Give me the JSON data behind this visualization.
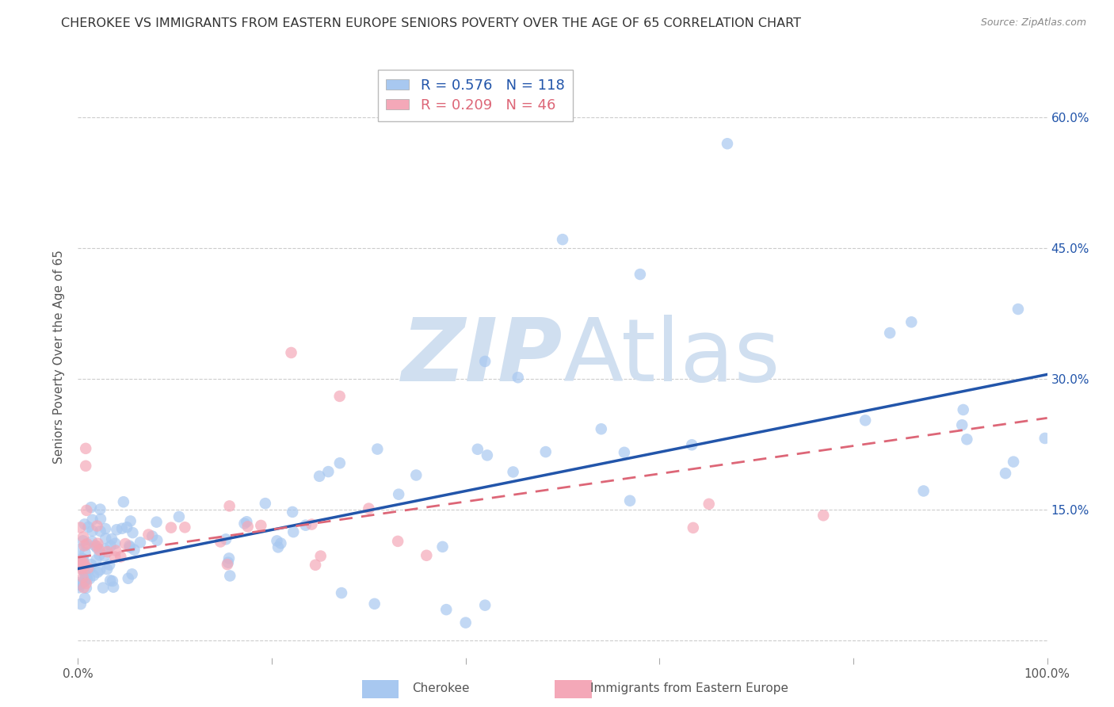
{
  "title": "CHEROKEE VS IMMIGRANTS FROM EASTERN EUROPE SENIORS POVERTY OVER THE AGE OF 65 CORRELATION CHART",
  "source": "Source: ZipAtlas.com",
  "ylabel": "Seniors Poverty Over the Age of 65",
  "yticks": [
    0.0,
    0.15,
    0.3,
    0.45,
    0.6
  ],
  "ytick_labels": [
    "",
    "15.0%",
    "30.0%",
    "45.0%",
    "60.0%"
  ],
  "xlim": [
    0.0,
    1.0
  ],
  "ylim": [
    -0.02,
    0.67
  ],
  "blue_R": 0.576,
  "blue_N": 118,
  "pink_R": 0.209,
  "pink_N": 46,
  "legend_label1": "Cherokee",
  "legend_label2": "Immigrants from Eastern Europe",
  "blue_color": "#A8C8F0",
  "pink_color": "#F4A8B8",
  "blue_line_color": "#2255AA",
  "pink_line_color": "#DD6677",
  "title_color": "#333333",
  "watermark_color": "#D0DFF0",
  "background_color": "#FFFFFF",
  "grid_color": "#CCCCCC",
  "blue_line_start_y": 0.082,
  "blue_line_end_y": 0.305,
  "pink_line_start_y": 0.095,
  "pink_line_end_y": 0.255
}
